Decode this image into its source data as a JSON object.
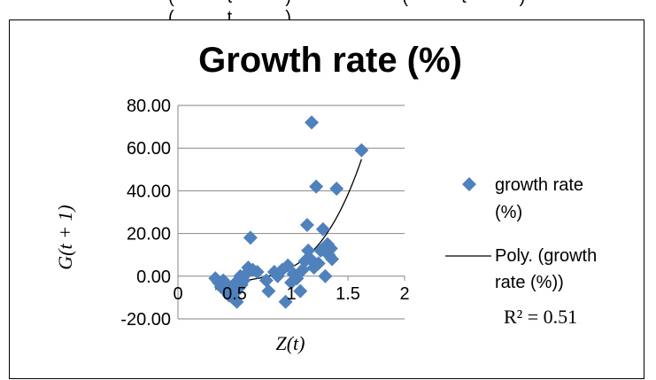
{
  "top_strip_text": "(t) (t) (t)",
  "chart_data": {
    "type": "scatter",
    "title": "Growth rate (%)",
    "xlabel": "Z(t)",
    "ylabel": "G(t + 1)",
    "xlim": [
      0,
      2
    ],
    "ylim": [
      -20,
      80
    ],
    "x_ticks": [
      "0",
      "0.5",
      "1",
      "1.5",
      "2"
    ],
    "y_ticks": [
      "80.00",
      "60.00",
      "40.00",
      "20.00",
      "0.00",
      "-20.00"
    ],
    "grid": true,
    "legend_placement": "right",
    "series": [
      {
        "name": "growth rate (%)",
        "marker": "diamond",
        "color": "#4F81BD",
        "points": [
          [
            0.33,
            -1
          ],
          [
            0.36,
            -3
          ],
          [
            0.38,
            -5
          ],
          [
            0.4,
            -2
          ],
          [
            0.42,
            -7
          ],
          [
            0.43,
            -4
          ],
          [
            0.45,
            -9
          ],
          [
            0.46,
            -6
          ],
          [
            0.48,
            -10
          ],
          [
            0.5,
            -8
          ],
          [
            0.51,
            -3
          ],
          [
            0.52,
            -12
          ],
          [
            0.53,
            -6
          ],
          [
            0.55,
            0
          ],
          [
            0.56,
            -4
          ],
          [
            0.58,
            -2
          ],
          [
            0.6,
            1
          ],
          [
            0.62,
            4
          ],
          [
            0.64,
            18
          ],
          [
            0.66,
            3
          ],
          [
            0.7,
            2
          ],
          [
            0.78,
            -2
          ],
          [
            0.8,
            -7
          ],
          [
            0.85,
            2
          ],
          [
            0.88,
            0
          ],
          [
            0.92,
            3
          ],
          [
            0.95,
            -12
          ],
          [
            0.97,
            5
          ],
          [
            1.0,
            -3
          ],
          [
            1.02,
            1
          ],
          [
            1.05,
            -1
          ],
          [
            1.08,
            -7
          ],
          [
            1.1,
            3
          ],
          [
            1.12,
            7
          ],
          [
            1.14,
            24
          ],
          [
            1.15,
            12
          ],
          [
            1.17,
            8
          ],
          [
            1.18,
            72
          ],
          [
            1.2,
            4
          ],
          [
            1.22,
            42
          ],
          [
            1.24,
            6
          ],
          [
            1.26,
            12
          ],
          [
            1.28,
            22
          ],
          [
            1.3,
            0
          ],
          [
            1.32,
            15
          ],
          [
            1.33,
            10
          ],
          [
            1.35,
            13
          ],
          [
            1.36,
            8
          ],
          [
            1.4,
            41
          ],
          [
            1.62,
            59
          ]
        ]
      },
      {
        "name": "Poly. (growth rate (%))",
        "type": "line",
        "color": "#000000",
        "fit": "polynomial"
      }
    ],
    "annotation": "R² = 0.51"
  }
}
